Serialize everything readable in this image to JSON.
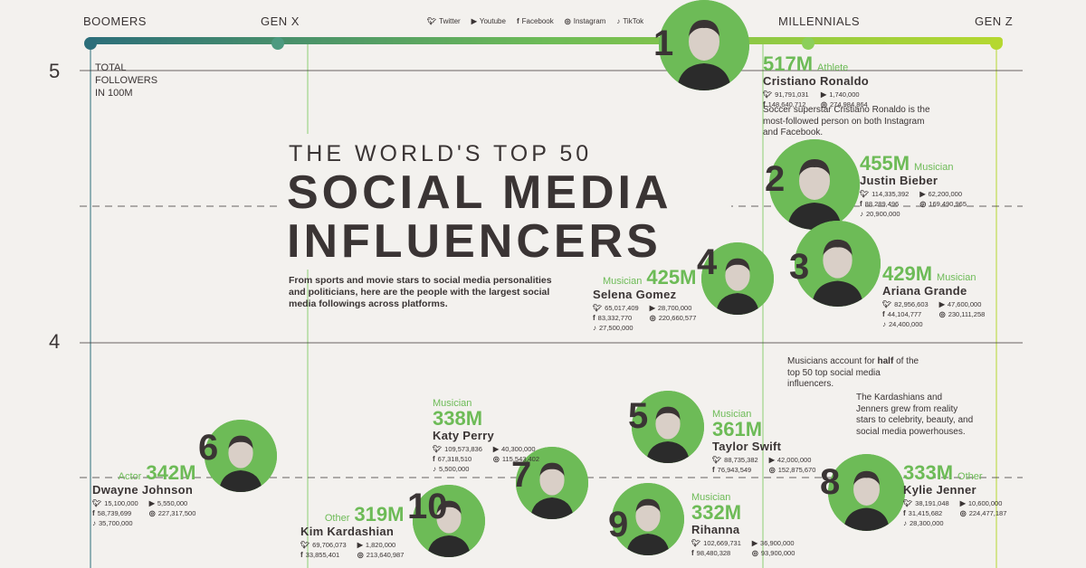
{
  "generations": [
    "BOOMERS",
    "GEN X",
    "MILLENNIALS",
    "GEN Z"
  ],
  "platforms": [
    {
      "icon": "twitter-icon",
      "label": "Twitter"
    },
    {
      "icon": "youtube-icon",
      "label": "Youtube"
    },
    {
      "icon": "facebook-icon",
      "label": "Facebook"
    },
    {
      "icon": "instagram-icon",
      "label": "Instagram"
    },
    {
      "icon": "tiktok-icon",
      "label": "TikTok"
    }
  ],
  "axis": {
    "ylabel": "TOTAL FOLLOWERS IN 100M",
    "ticks": [
      "5",
      "4"
    ]
  },
  "title": {
    "top": "THE WORLD'S TOP 50",
    "line1": "SOCIAL MEDIA",
    "line2": "INFLUENCERS",
    "subtitle": "From sports and movie stars to social media personalities and politicians, here are the people with the largest social media followings across platforms."
  },
  "notes": {
    "ronaldo": "Soccer superstar Cristiano Ronaldo is the most-followed person on both Instagram and Facebook.",
    "musicians_pre": "Musicians account for",
    "musicians_bold": "half",
    "musicians_post": "of the top 50 top social media influencers.",
    "kardashians": "The Kardashians and Jenners grew from reality stars to celebrity, beauty, and social media powerhouses."
  },
  "colors": {
    "accent_green": "#6dbb57",
    "text_dark": "#3a3434",
    "background": "#f3f1ee",
    "gradient": [
      "#2c6e7a",
      "#6dbb57",
      "#b5d830"
    ]
  },
  "chart_data": {
    "type": "scatter",
    "y_unit": "total followers (100M)",
    "ylim_visible": [
      3.2,
      5.2
    ],
    "x_categories": [
      "BOOMERS",
      "GEN X",
      "MILLENNIALS",
      "GEN Z"
    ],
    "influencers": [
      {
        "rank": "1",
        "name": "Cristiano Ronaldo",
        "total": "517M",
        "category": "Athlete",
        "generation": "MILLENNIALS",
        "twitter": "91,791,031",
        "youtube": "1,740,000",
        "facebook": "148,640,712",
        "instagram": "274,984,864",
        "tiktok": ""
      },
      {
        "rank": "2",
        "name": "Justin Bieber",
        "total": "455M",
        "category": "Musician",
        "generation": "MILLENNIALS",
        "twitter": "114,335,392",
        "youtube": "62,200,000",
        "facebook": "88,289,496",
        "instagram": "169,490,965",
        "tiktok": "20,900,000"
      },
      {
        "rank": "3",
        "name": "Ariana Grande",
        "total": "429M",
        "category": "Musician",
        "generation": "MILLENNIALS",
        "twitter": "82,956,603",
        "youtube": "47,600,000",
        "facebook": "44,104,777",
        "instagram": "230,111,258",
        "tiktok": "24,400,000"
      },
      {
        "rank": "4",
        "name": "Selena Gomez",
        "total": "425M",
        "category": "Musician",
        "generation": "MILLENNIALS",
        "twitter": "65,017,409",
        "youtube": "28,700,000",
        "facebook": "83,332,770",
        "instagram": "220,660,577",
        "tiktok": "27,500,000"
      },
      {
        "rank": "5",
        "name": "Taylor Swift",
        "total": "361M",
        "category": "Musician",
        "generation": "MILLENNIALS",
        "twitter": "88,735,382",
        "youtube": "42,000,000",
        "facebook": "76,943,549",
        "instagram": "152,875,670",
        "tiktok": ""
      },
      {
        "rank": "6",
        "name": "Dwayne Johnson",
        "total": "342M",
        "category": "Actor",
        "generation": "GEN X",
        "twitter": "15,100,000",
        "youtube": "5,550,000",
        "facebook": "58,739,699",
        "instagram": "227,317,500",
        "tiktok": "35,700,000"
      },
      {
        "rank": "7",
        "name": "Katy Perry",
        "total": "338M",
        "category": "Musician",
        "generation": "MILLENNIALS",
        "twitter": "109,573,836",
        "youtube": "40,300,000",
        "facebook": "67,318,510",
        "instagram": "115,543,402",
        "tiktok": "5,500,000"
      },
      {
        "rank": "8",
        "name": "Kylie Jenner",
        "total": "333M",
        "category": "Other",
        "generation": "GEN Z",
        "twitter": "38,191,048",
        "youtube": "10,600,000",
        "facebook": "31,415,682",
        "instagram": "224,477,187",
        "tiktok": "28,300,000"
      },
      {
        "rank": "9",
        "name": "Rihanna",
        "total": "332M",
        "category": "Musician",
        "generation": "MILLENNIALS",
        "twitter": "102,669,731",
        "youtube": "36,900,000",
        "facebook": "98,480,328",
        "instagram": "93,900,000",
        "tiktok": ""
      },
      {
        "rank": "10",
        "name": "Kim Kardashian",
        "total": "319M",
        "category": "Other",
        "generation": "MILLENNIALS",
        "twitter": "69,706,073",
        "youtube": "1,820,000",
        "facebook": "33,855,401",
        "instagram": "213,640,987",
        "tiktok": ""
      }
    ]
  }
}
